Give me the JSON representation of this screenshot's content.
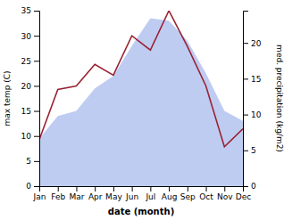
{
  "chart_data": {
    "type": "line",
    "xlabel": "date (month)",
    "ylabel": "max temp (C)",
    "y2label": "med. precipitation (kg/m2)",
    "categories": [
      "Jan",
      "Feb",
      "Mar",
      "Apr",
      "May",
      "Jun",
      "Jul",
      "Aug",
      "Sep",
      "Oct",
      "Nov",
      "Dec"
    ],
    "series": [
      {
        "type": "area",
        "color": "#aabbee",
        "values": [
          9.5,
          14.0,
          15.0,
          19.5,
          22.0,
          28.0,
          33.5,
          33.0,
          29.0,
          22.5,
          15.0,
          13.0
        ]
      },
      {
        "type": "line",
        "color": "#992233",
        "axis": "y2",
        "values": [
          6.5,
          13.5,
          14.0,
          17.0,
          15.5,
          21.0,
          19.0,
          24.5,
          19.5,
          14.0,
          5.5,
          8.0
        ]
      }
    ],
    "ylim": [
      0,
      35
    ],
    "yticks": [
      0,
      5,
      10,
      15,
      20,
      25,
      30,
      35
    ],
    "y2lim": [
      0,
      24.5
    ],
    "y2ticks": [
      0,
      5,
      10,
      15,
      20
    ]
  }
}
